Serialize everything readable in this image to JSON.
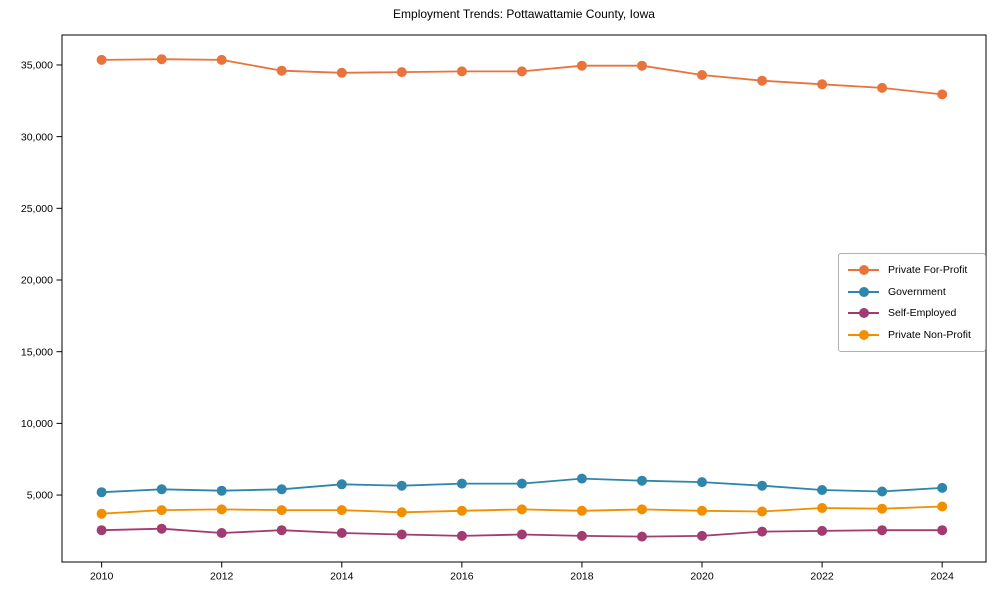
{
  "chart_data": {
    "type": "line",
    "title": "Employment Trends: Pottawattamie County, Iowa",
    "xlabel": "",
    "ylabel": "",
    "grid": false,
    "legend_position": "center right",
    "x": [
      2010,
      2011,
      2012,
      2013,
      2014,
      2015,
      2016,
      2017,
      2018,
      2019,
      2020,
      2021,
      2022,
      2023,
      2024
    ],
    "series": [
      {
        "name": "Private For-Profit",
        "color": "#E8743B",
        "values": [
          35350,
          35400,
          35350,
          34600,
          34450,
          34500,
          34550,
          34550,
          34950,
          34950,
          34300,
          33900,
          33650,
          33400,
          32950
        ]
      },
      {
        "name": "Government",
        "color": "#2E86AB",
        "values": [
          5200,
          5400,
          5300,
          5400,
          5750,
          5650,
          5800,
          5800,
          6150,
          6000,
          5900,
          5650,
          5350,
          5250,
          5500
        ]
      },
      {
        "name": "Self-Employed",
        "color": "#A23B72",
        "values": [
          2550,
          2650,
          2350,
          2550,
          2350,
          2250,
          2150,
          2250,
          2150,
          2100,
          2150,
          2450,
          2500,
          2550,
          2550
        ]
      },
      {
        "name": "Private Non-Profit",
        "color": "#F18F01",
        "values": [
          3700,
          3950,
          4000,
          3950,
          3950,
          3800,
          3900,
          4000,
          3900,
          4000,
          3900,
          3850,
          4100,
          4050,
          4200
        ]
      }
    ],
    "xlim": [
      2009.34,
      2024.73
    ],
    "ylim": [
      330,
      37090
    ],
    "x_tick_values": [
      2010,
      2012,
      2014,
      2016,
      2018,
      2020,
      2022,
      2024
    ],
    "x_tick_labels": [
      "2010",
      "2012",
      "2014",
      "2016",
      "2018",
      "2020",
      "2022",
      "2024"
    ],
    "y_tick_values": [
      5000,
      10000,
      15000,
      20000,
      25000,
      30000,
      35000
    ],
    "y_tick_labels": [
      "5,000",
      "10,000",
      "15,000",
      "20,000",
      "25,000",
      "30,000",
      "35,000"
    ]
  }
}
